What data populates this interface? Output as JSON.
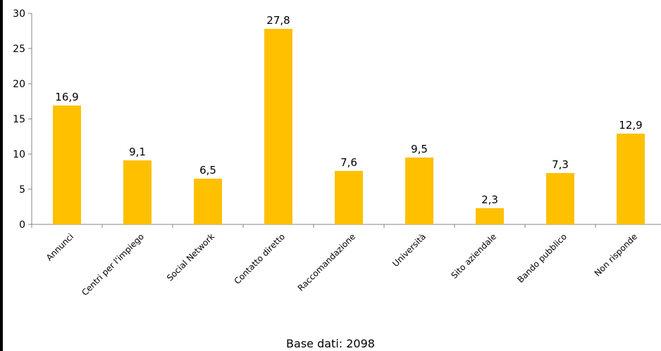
{
  "chart_data": {
    "type": "bar",
    "categories": [
      "Annunci",
      "Centri per l'impiego",
      "Social Network",
      "Contatto diretto",
      "Raccomandazione",
      "Università",
      "Sito aziendale",
      "Bando pubblico",
      "Non risponde"
    ],
    "values": [
      16.9,
      9.1,
      6.5,
      27.8,
      7.6,
      9.5,
      2.3,
      7.3,
      12.9
    ],
    "value_labels": [
      "16,9",
      "9,1",
      "6,5",
      "27,8",
      "7,6",
      "9,5",
      "2,3",
      "7,3",
      "12,9"
    ],
    "yticks": [
      "0",
      "5",
      "10",
      "15",
      "20",
      "25",
      "30"
    ],
    "ylim": [
      0,
      30
    ],
    "grid": false,
    "bar_color": "#FFC000",
    "axis_color": "#868686"
  },
  "footer": {
    "note": "Base dati: 2098"
  }
}
